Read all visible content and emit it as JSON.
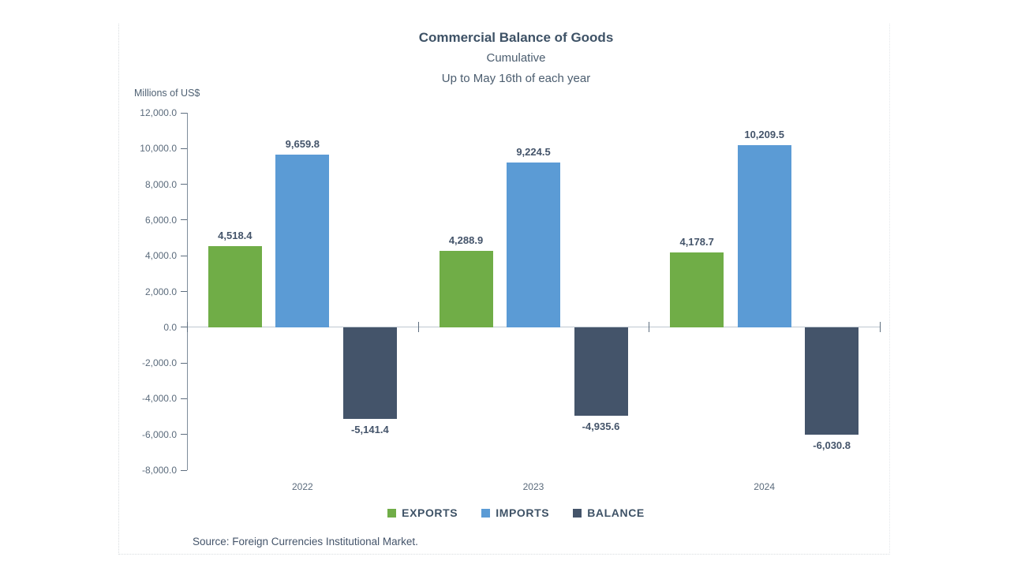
{
  "window": {
    "background": "#ffffff"
  },
  "source": {
    "text": "Source: Foreign Currencies Institutional Market."
  },
  "chart_data": {
    "type": "bar",
    "title": "Commercial Balance of Goods",
    "subtitle": [
      "Cumulative",
      "Up to May 16th of each year"
    ],
    "ylabel": "Millions of US$",
    "xlabel": "",
    "categories": [
      "2022",
      "2023",
      "2024"
    ],
    "series": [
      {
        "name": "EXPORTS",
        "color": "#70AD47",
        "values": [
          4518.4,
          4288.9,
          4178.7
        ],
        "labels": [
          "4,518.4",
          "4,288.9",
          "4,178.7"
        ]
      },
      {
        "name": "IMPORTS",
        "color": "#5B9BD5",
        "values": [
          9659.8,
          9224.5,
          10209.5
        ],
        "labels": [
          "9,659.8",
          "9,224.5",
          "10,209.5"
        ]
      },
      {
        "name": "BALANCE",
        "color": "#44546A",
        "values": [
          -5141.4,
          -4935.6,
          -6030.8
        ],
        "labels": [
          "-5,141.4",
          "-4,935.6",
          "-6,030.8"
        ]
      }
    ],
    "ylim": [
      -8000,
      12000
    ],
    "y_ticks": [
      {
        "value": 12000,
        "label": "12,000.0"
      },
      {
        "value": 10000,
        "label": "10,000.0"
      },
      {
        "value": 8000,
        "label": "8,000.0"
      },
      {
        "value": 6000,
        "label": "6,000.0"
      },
      {
        "value": 4000,
        "label": "4,000.0"
      },
      {
        "value": 2000,
        "label": "2,000.0"
      },
      {
        "value": 0,
        "label": "0.0"
      },
      {
        "value": -2000,
        "label": "-2,000.0"
      },
      {
        "value": -4000,
        "label": "-4,000.0"
      },
      {
        "value": -6000,
        "label": "-6,000.0"
      },
      {
        "value": -8000,
        "label": "-8,000.0"
      }
    ],
    "grid": false,
    "legend_position": "bottom",
    "colors": {
      "axis_line": "#8ema",
      "axis_line_hex": "#7e8c9b",
      "zero_line": "#bfc8d1",
      "tick_mark": "#5e6e7f",
      "tick_text": "#5b6b7c",
      "data_label_text": "#44546A",
      "title_text": "#3e5266"
    }
  }
}
